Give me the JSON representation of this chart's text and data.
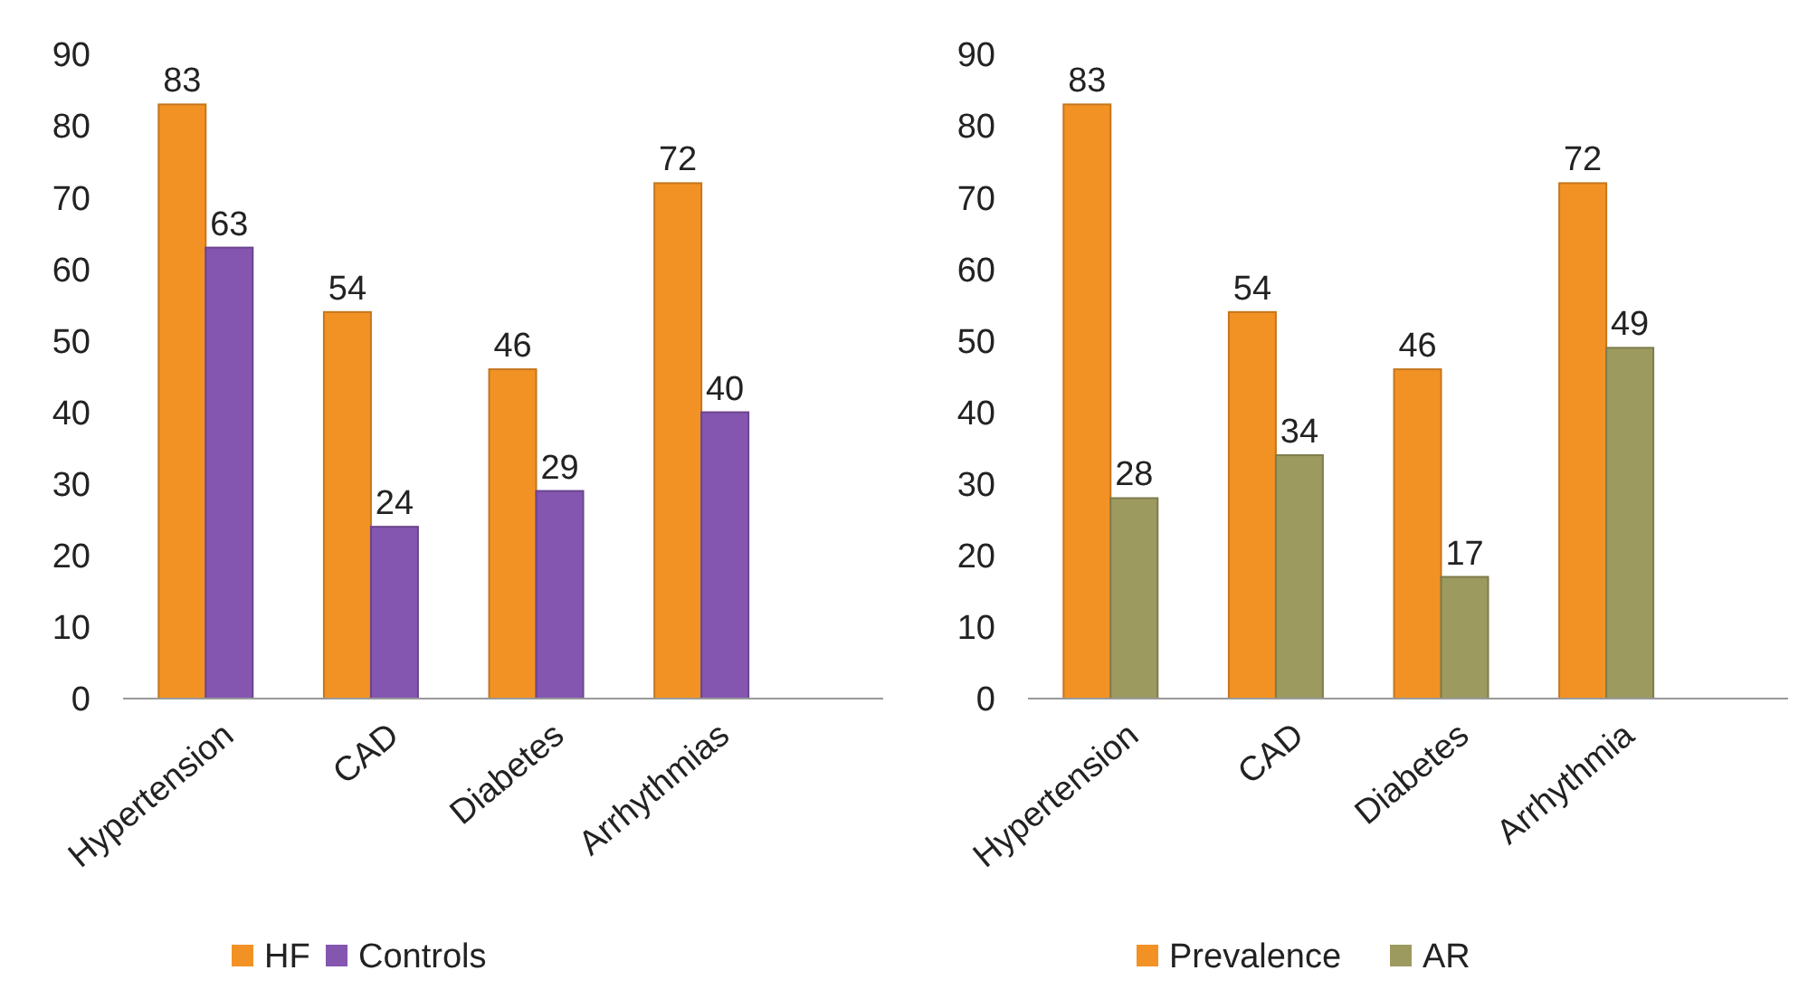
{
  "chart_data": [
    {
      "type": "bar",
      "categories": [
        "Hypertension",
        "CAD",
        "Diabetes",
        "Arrhythmias"
      ],
      "series": [
        {
          "name": "HF",
          "color": "#f39224",
          "values": [
            83,
            54,
            46,
            72
          ]
        },
        {
          "name": "Controls",
          "color": "#8456b0",
          "values": [
            63,
            24,
            29,
            40
          ]
        }
      ],
      "ylim": [
        0,
        90
      ],
      "yticks": [
        0,
        10,
        20,
        30,
        40,
        50,
        60,
        70,
        80,
        90
      ],
      "data_labels": true,
      "legend": "bottom",
      "grid": false
    },
    {
      "type": "bar",
      "categories": [
        "Hypertension",
        "CAD",
        "Diabetes",
        "Arrhythmia"
      ],
      "series": [
        {
          "name": "Prevalence",
          "color": "#f39224",
          "values": [
            83,
            54,
            46,
            72
          ]
        },
        {
          "name": "AR",
          "color": "#9c9a5e",
          "values": [
            28,
            34,
            17,
            49
          ]
        }
      ],
      "ylim": [
        0,
        90
      ],
      "yticks": [
        0,
        10,
        20,
        30,
        40,
        50,
        60,
        70,
        80,
        90
      ],
      "data_labels": true,
      "legend": "bottom",
      "grid": false
    }
  ]
}
